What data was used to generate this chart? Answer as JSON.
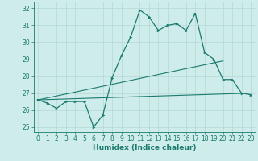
{
  "xlabel": "Humidex (Indice chaleur)",
  "ylabel": "",
  "xlim": [
    -0.5,
    23.5
  ],
  "ylim": [
    24.7,
    32.4
  ],
  "yticks": [
    25,
    26,
    27,
    28,
    29,
    30,
    31,
    32
  ],
  "xticks": [
    0,
    1,
    2,
    3,
    4,
    5,
    6,
    7,
    8,
    9,
    10,
    11,
    12,
    13,
    14,
    15,
    16,
    17,
    18,
    19,
    20,
    21,
    22,
    23
  ],
  "background_color": "#ceecea",
  "grid_color": "#b8dbd9",
  "line_color": "#1a7a6e",
  "humidex": [
    26.6,
    26.4,
    26.1,
    26.5,
    26.5,
    26.5,
    25.0,
    25.7,
    27.9,
    29.2,
    30.3,
    31.9,
    31.5,
    30.7,
    31.0,
    31.1,
    30.7,
    31.7,
    29.4,
    29.0,
    27.8,
    27.8,
    27.0,
    26.9
  ],
  "trend1_x": [
    0,
    23
  ],
  "trend1_y": [
    26.6,
    27.0
  ],
  "trend2_x": [
    0,
    20
  ],
  "trend2_y": [
    26.6,
    28.9
  ],
  "tick_fontsize": 5.5,
  "label_fontsize": 6.5
}
